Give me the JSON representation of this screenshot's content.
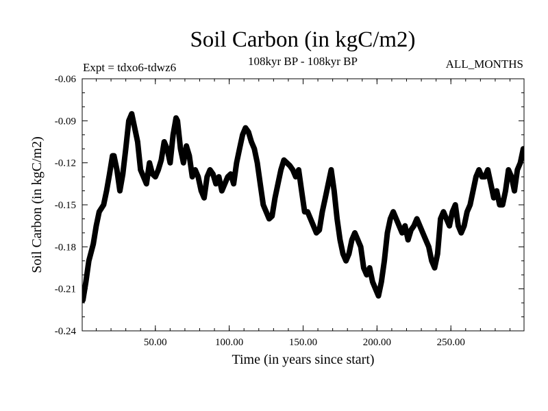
{
  "chart_data": {
    "type": "line",
    "title": "Soil Carbon (in kgC/m2)",
    "subtitle_left": "Expt = tdxo6-tdwz6",
    "subtitle_center": "108kyr BP - 108kyr BP",
    "subtitle_right": "ALL_MONTHS",
    "xlabel": "Time (in years since start)",
    "ylabel": "Soil Carbon (in kgC/m2)",
    "xlim": [
      0.5,
      299.5
    ],
    "ylim": [
      -0.24,
      -0.06
    ],
    "xticks": [
      50,
      100,
      150,
      200,
      250
    ],
    "xtick_labels": [
      "50.00",
      "100.00",
      "150.00",
      "200.00",
      "250.00"
    ],
    "yticks": [
      -0.06,
      -0.09,
      -0.12,
      -0.15,
      -0.18,
      -0.21,
      -0.24
    ],
    "ytick_labels": [
      "-0.06",
      "-0.09",
      "-0.12",
      "-0.15",
      "-0.18",
      "-0.21",
      "-0.24"
    ],
    "line_color": "#000000",
    "series": [
      {
        "x": [
          1,
          3,
          5,
          8,
          10,
          12,
          15,
          17,
          19,
          21,
          22,
          24,
          26,
          28,
          30,
          32,
          34,
          36,
          38,
          40,
          42,
          44,
          46,
          48,
          50,
          52,
          54,
          56,
          58,
          60,
          62,
          64,
          65,
          67,
          69,
          71,
          73,
          75,
          77,
          79,
          81,
          83,
          85,
          87,
          89,
          91,
          93,
          95,
          97,
          99,
          101,
          103,
          105,
          107,
          109,
          111,
          113,
          115,
          117,
          119,
          121,
          123,
          125,
          127,
          129,
          131,
          133,
          135,
          137,
          139,
          141,
          143,
          145,
          147,
          149,
          151,
          153,
          155,
          157,
          159,
          161,
          163,
          165,
          167,
          169,
          171,
          173,
          175,
          177,
          179,
          181,
          183,
          185,
          187,
          189,
          191,
          193,
          195,
          197,
          199,
          201,
          203,
          205,
          207,
          209,
          211,
          213,
          215,
          217,
          219,
          221,
          223,
          225,
          227,
          229,
          231,
          233,
          235,
          237,
          239,
          241,
          243,
          245,
          247,
          249,
          251,
          253,
          255,
          257,
          259,
          261,
          263,
          265,
          267,
          269,
          271,
          273,
          275,
          277,
          279,
          281,
          283,
          285,
          287,
          289,
          291,
          293,
          295,
          297,
          299
        ],
        "values": [
          -0.218,
          -0.205,
          -0.19,
          -0.178,
          -0.165,
          -0.155,
          -0.15,
          -0.14,
          -0.128,
          -0.115,
          -0.115,
          -0.125,
          -0.14,
          -0.128,
          -0.11,
          -0.09,
          -0.085,
          -0.095,
          -0.105,
          -0.125,
          -0.13,
          -0.135,
          -0.12,
          -0.128,
          -0.13,
          -0.125,
          -0.118,
          -0.105,
          -0.11,
          -0.12,
          -0.1,
          -0.088,
          -0.09,
          -0.11,
          -0.12,
          -0.108,
          -0.115,
          -0.13,
          -0.125,
          -0.13,
          -0.14,
          -0.145,
          -0.13,
          -0.125,
          -0.128,
          -0.135,
          -0.13,
          -0.14,
          -0.135,
          -0.13,
          -0.128,
          -0.135,
          -0.12,
          -0.11,
          -0.1,
          -0.095,
          -0.098,
          -0.105,
          -0.11,
          -0.12,
          -0.135,
          -0.15,
          -0.155,
          -0.16,
          -0.158,
          -0.145,
          -0.135,
          -0.125,
          -0.118,
          -0.12,
          -0.122,
          -0.125,
          -0.13,
          -0.125,
          -0.14,
          -0.155,
          -0.155,
          -0.16,
          -0.165,
          -0.17,
          -0.168,
          -0.155,
          -0.145,
          -0.135,
          -0.125,
          -0.14,
          -0.16,
          -0.175,
          -0.185,
          -0.19,
          -0.185,
          -0.175,
          -0.17,
          -0.175,
          -0.18,
          -0.195,
          -0.2,
          -0.195,
          -0.205,
          -0.21,
          -0.215,
          -0.205,
          -0.19,
          -0.17,
          -0.16,
          -0.155,
          -0.16,
          -0.165,
          -0.17,
          -0.165,
          -0.175,
          -0.168,
          -0.165,
          -0.16,
          -0.165,
          -0.17,
          -0.175,
          -0.18,
          -0.19,
          -0.195,
          -0.185,
          -0.16,
          -0.155,
          -0.16,
          -0.165,
          -0.155,
          -0.15,
          -0.165,
          -0.17,
          -0.165,
          -0.155,
          -0.15,
          -0.14,
          -0.13,
          -0.125,
          -0.13,
          -0.13,
          -0.125,
          -0.135,
          -0.145,
          -0.14,
          -0.15,
          -0.15,
          -0.14,
          -0.125,
          -0.13,
          -0.14,
          -0.125,
          -0.12,
          -0.11
        ]
      }
    ]
  }
}
